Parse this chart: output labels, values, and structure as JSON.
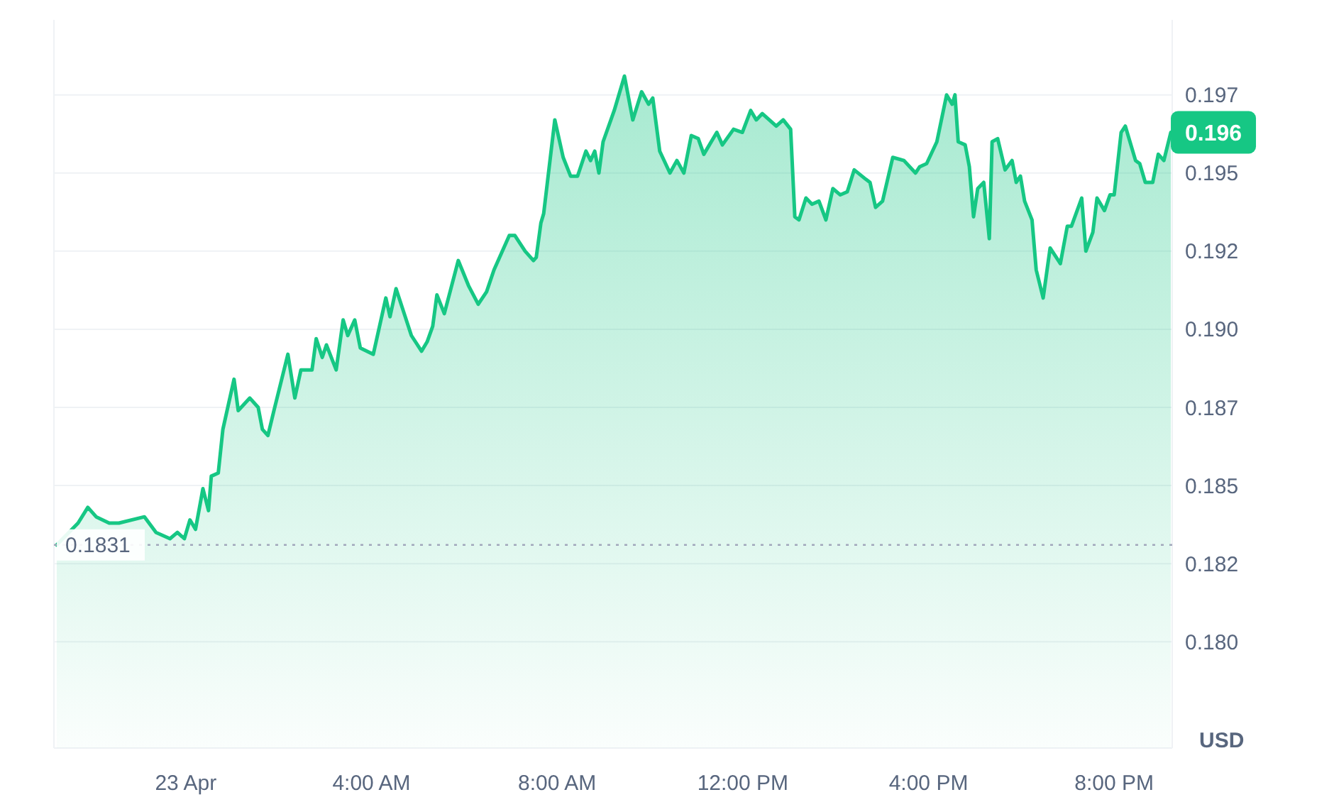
{
  "chart_data": {
    "type": "area",
    "ylabel": "USD",
    "x": [
      -2.78,
      -2.32,
      -2.11,
      -1.93,
      -1.65,
      -1.44,
      -0.89,
      -0.64,
      -0.34,
      -0.18,
      -0.03,
      0.09,
      0.21,
      0.37,
      0.49,
      0.55,
      0.7,
      0.8,
      1.04,
      1.13,
      1.38,
      1.56,
      1.65,
      1.77,
      1.9,
      2.2,
      2.35,
      2.48,
      2.72,
      2.81,
      2.94,
      3.03,
      3.24,
      3.39,
      3.49,
      3.64,
      3.76,
      4.04,
      4.31,
      4.4,
      4.53,
      4.86,
      5.08,
      5.2,
      5.32,
      5.41,
      5.57,
      5.87,
      6.09,
      6.3,
      6.48,
      6.64,
      6.97,
      7.09,
      7.31,
      7.49,
      7.55,
      7.65,
      7.71,
      7.95,
      8.13,
      8.29,
      8.44,
      8.62,
      8.72,
      8.81,
      8.9,
      8.99,
      9.23,
      9.45,
      9.63,
      9.82,
      9.97,
      10.06,
      10.21,
      10.43,
      10.58,
      10.73,
      10.89,
      11.04,
      11.16,
      11.28,
      11.44,
      11.56,
      11.8,
      11.99,
      12.17,
      12.29,
      12.42,
      12.72,
      12.87,
      13.03,
      13.12,
      13.21,
      13.36,
      13.49,
      13.64,
      13.79,
      13.94,
      14.1,
      14.25,
      14.4,
      14.65,
      14.74,
      14.86,
      15.01,
      15.23,
      15.47,
      15.72,
      15.81,
      15.96,
      16.18,
      16.39,
      16.51,
      16.57,
      16.64,
      16.79,
      16.88,
      16.97,
      17.06,
      17.19,
      17.31,
      17.37,
      17.49,
      17.65,
      17.8,
      17.89,
      17.98,
      18.07,
      18.23,
      18.32,
      18.47,
      18.62,
      18.84,
      18.99,
      19.08,
      19.3,
      19.39,
      19.54,
      19.63,
      19.79,
      19.91,
      20.0,
      20.15,
      20.24,
      20.46,
      20.55,
      20.67,
      20.83,
      20.95,
      21.07,
      21.22
    ],
    "series": [
      {
        "color": "#16c784",
        "values": [
          0.1831,
          0.1838,
          0.1843,
          0.184,
          0.1838,
          0.1838,
          0.184,
          0.1835,
          0.1833,
          0.1835,
          0.1833,
          0.1839,
          0.1836,
          0.1849,
          0.1842,
          0.1853,
          0.1854,
          0.1868,
          0.1884,
          0.1874,
          0.1878,
          0.1875,
          0.1868,
          0.1866,
          0.1874,
          0.1892,
          0.1878,
          0.1887,
          0.1887,
          0.1897,
          0.1891,
          0.1895,
          0.1887,
          0.1903,
          0.1898,
          0.1903,
          0.1894,
          0.1892,
          0.191,
          0.1904,
          0.1913,
          0.1898,
          0.1893,
          0.1896,
          0.1901,
          0.1911,
          0.1905,
          0.1922,
          0.1914,
          0.1908,
          0.1912,
          0.1919,
          0.193,
          0.193,
          0.1925,
          0.1922,
          0.1923,
          0.1934,
          0.1937,
          0.1967,
          0.1955,
          0.1949,
          0.1949,
          0.1957,
          0.1954,
          0.1957,
          0.195,
          0.196,
          0.197,
          0.1981,
          0.1967,
          0.1976,
          0.1972,
          0.1974,
          0.1957,
          0.195,
          0.1954,
          0.195,
          0.1962,
          0.1961,
          0.1956,
          0.1959,
          0.1963,
          0.1959,
          0.1964,
          0.1963,
          0.197,
          0.1967,
          0.1969,
          0.1965,
          0.1967,
          0.1964,
          0.1936,
          0.1935,
          0.1942,
          0.194,
          0.1941,
          0.1935,
          0.1945,
          0.1943,
          0.1944,
          0.1951,
          0.1948,
          0.1947,
          0.1939,
          0.1941,
          0.1955,
          0.1954,
          0.195,
          0.1952,
          0.1953,
          0.196,
          0.1975,
          0.1972,
          0.1975,
          0.196,
          0.1959,
          0.1952,
          0.1936,
          0.1945,
          0.1947,
          0.1929,
          0.196,
          0.1961,
          0.1951,
          0.1954,
          0.1947,
          0.1949,
          0.1941,
          0.1935,
          0.1919,
          0.191,
          0.1926,
          0.1921,
          0.1933,
          0.1933,
          0.1942,
          0.1925,
          0.1931,
          0.1942,
          0.1938,
          0.1943,
          0.1943,
          0.1963,
          0.1965,
          0.1954,
          0.1953,
          0.1947,
          0.1947,
          0.1956,
          0.1954,
          0.1963
        ]
      }
    ],
    "xlim": [
      -2.84,
      21.25
    ],
    "ylim": [
      0.1766,
      0.1999
    ],
    "xticks": [
      {
        "value": 0,
        "label": "23 Apr"
      },
      {
        "value": 4,
        "label": "4:00 AM"
      },
      {
        "value": 8,
        "label": "8:00 AM"
      },
      {
        "value": 12,
        "label": "12:00 PM"
      },
      {
        "value": 16,
        "label": "4:00 PM"
      },
      {
        "value": 20,
        "label": "8:00 PM"
      }
    ],
    "yticks": [
      {
        "value": 0.18,
        "label": "0.180"
      },
      {
        "value": 0.1825,
        "label": "0.182"
      },
      {
        "value": 0.185,
        "label": "0.185"
      },
      {
        "value": 0.1875,
        "label": "0.187"
      },
      {
        "value": 0.19,
        "label": "0.190"
      },
      {
        "value": 0.1925,
        "label": "0.192"
      },
      {
        "value": 0.195,
        "label": "0.195"
      },
      {
        "value": 0.1975,
        "label": "0.197"
      }
    ],
    "grid": "y",
    "ref_lines": [
      {
        "axis": "y",
        "value": 0.1831,
        "label": "0.1831",
        "line_style": "dotted"
      }
    ],
    "annotations": [
      {
        "text": "0.196",
        "x": 21.22,
        "y": 0.1963
      }
    ]
  }
}
